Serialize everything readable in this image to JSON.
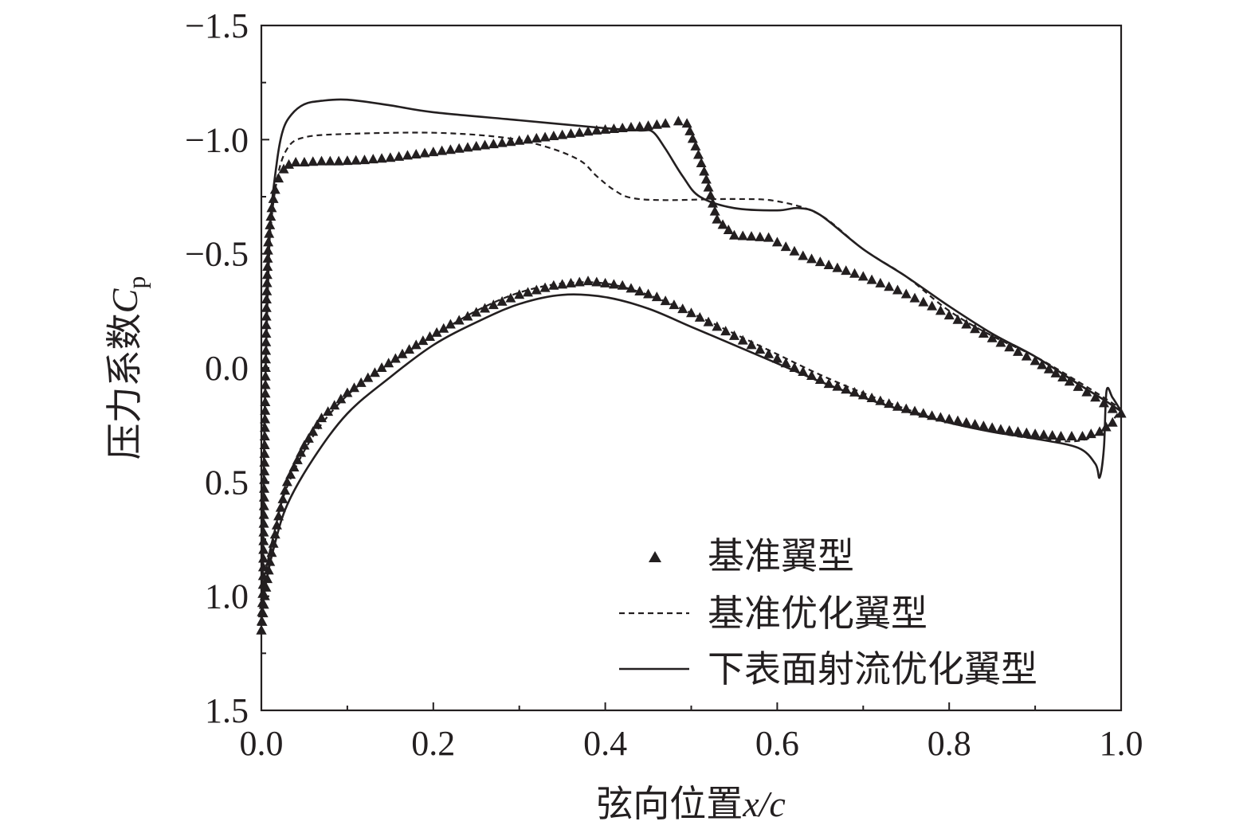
{
  "chart_data": {
    "type": "line",
    "xlabel": "弦向位置",
    "xlabel_var": "x/c",
    "ylabel": "压力系数",
    "ylabel_var": "C",
    "ylabel_sub": "p",
    "xlim": [
      0.0,
      1.0
    ],
    "ylim": [
      1.5,
      -1.5
    ],
    "y_inverted": true,
    "x_ticks": [
      "0.0",
      "0.2",
      "0.4",
      "0.6",
      "0.8",
      "1.0"
    ],
    "y_ticks": [
      "−1.5",
      "−1.0",
      "−0.5",
      "0.0",
      "0.5",
      "1.0",
      "1.5"
    ],
    "x_tick_values": [
      0.0,
      0.2,
      0.4,
      0.6,
      0.8,
      1.0
    ],
    "y_tick_values": [
      -1.5,
      -1.0,
      -0.5,
      0.0,
      0.5,
      1.0,
      1.5
    ],
    "grid": false,
    "legend_position": "bottom-right",
    "series": [
      {
        "name": "基准翼型",
        "style": "triangle-markers",
        "upper": [
          [
            0.0,
            1.15
          ],
          [
            0.002,
            0.95
          ],
          [
            0.004,
            0.3
          ],
          [
            0.006,
            -0.3
          ],
          [
            0.008,
            -0.55
          ],
          [
            0.012,
            -0.7
          ],
          [
            0.016,
            -0.78
          ],
          [
            0.02,
            -0.83
          ],
          [
            0.026,
            -0.87
          ],
          [
            0.032,
            -0.89
          ],
          [
            0.04,
            -0.9
          ],
          [
            0.05,
            -0.9
          ],
          [
            0.07,
            -0.905
          ],
          [
            0.09,
            -0.905
          ],
          [
            0.12,
            -0.91
          ],
          [
            0.15,
            -0.92
          ],
          [
            0.18,
            -0.935
          ],
          [
            0.21,
            -0.95
          ],
          [
            0.24,
            -0.965
          ],
          [
            0.27,
            -0.98
          ],
          [
            0.3,
            -0.995
          ],
          [
            0.33,
            -1.01
          ],
          [
            0.36,
            -1.025
          ],
          [
            0.39,
            -1.04
          ],
          [
            0.42,
            -1.05
          ],
          [
            0.45,
            -1.06
          ],
          [
            0.47,
            -1.07
          ],
          [
            0.485,
            -1.08
          ],
          [
            0.495,
            -1.07
          ],
          [
            0.505,
            -0.97
          ],
          [
            0.515,
            -0.86
          ],
          [
            0.53,
            -0.65
          ],
          [
            0.55,
            -0.58
          ],
          [
            0.57,
            -0.575
          ],
          [
            0.59,
            -0.57
          ],
          [
            0.61,
            -0.53
          ],
          [
            0.63,
            -0.49
          ],
          [
            0.66,
            -0.45
          ],
          [
            0.7,
            -0.4
          ],
          [
            0.74,
            -0.34
          ],
          [
            0.78,
            -0.27
          ],
          [
            0.82,
            -0.19
          ],
          [
            0.86,
            -0.11
          ],
          [
            0.9,
            -0.03
          ],
          [
            0.94,
            0.06
          ],
          [
            0.97,
            0.13
          ],
          [
            0.99,
            0.18
          ],
          [
            1.0,
            0.2
          ]
        ],
        "lower": [
          [
            0.0,
            1.15
          ],
          [
            0.004,
            1.0
          ],
          [
            0.01,
            0.85
          ],
          [
            0.02,
            0.65
          ],
          [
            0.03,
            0.5
          ],
          [
            0.05,
            0.34
          ],
          [
            0.07,
            0.22
          ],
          [
            0.1,
            0.11
          ],
          [
            0.14,
            0.0
          ],
          [
            0.18,
            -0.1
          ],
          [
            0.22,
            -0.19
          ],
          [
            0.26,
            -0.26
          ],
          [
            0.3,
            -0.32
          ],
          [
            0.34,
            -0.36
          ],
          [
            0.38,
            -0.38
          ],
          [
            0.42,
            -0.36
          ],
          [
            0.46,
            -0.31
          ],
          [
            0.5,
            -0.24
          ],
          [
            0.54,
            -0.16
          ],
          [
            0.58,
            -0.08
          ],
          [
            0.62,
            0.0
          ],
          [
            0.66,
            0.07
          ],
          [
            0.7,
            0.12
          ],
          [
            0.74,
            0.17
          ],
          [
            0.78,
            0.21
          ],
          [
            0.82,
            0.24
          ],
          [
            0.86,
            0.27
          ],
          [
            0.9,
            0.29
          ],
          [
            0.93,
            0.3
          ],
          [
            0.955,
            0.3
          ],
          [
            0.975,
            0.28
          ],
          [
            0.99,
            0.24
          ],
          [
            1.0,
            0.2
          ]
        ]
      },
      {
        "name": "基准优化翼型",
        "style": "dashed",
        "upper": [
          [
            0.0,
            1.1
          ],
          [
            0.002,
            0.6
          ],
          [
            0.005,
            0.0
          ],
          [
            0.01,
            -0.55
          ],
          [
            0.018,
            -0.82
          ],
          [
            0.03,
            -0.96
          ],
          [
            0.05,
            -1.01
          ],
          [
            0.1,
            -1.025
          ],
          [
            0.2,
            -1.03
          ],
          [
            0.28,
            -1.01
          ],
          [
            0.33,
            -0.97
          ],
          [
            0.37,
            -0.91
          ],
          [
            0.39,
            -0.84
          ],
          [
            0.41,
            -0.78
          ],
          [
            0.43,
            -0.745
          ],
          [
            0.47,
            -0.735
          ],
          [
            0.55,
            -0.74
          ],
          [
            0.6,
            -0.73
          ],
          [
            0.65,
            -0.67
          ],
          [
            0.7,
            -0.52
          ],
          [
            0.75,
            -0.4
          ],
          [
            0.8,
            -0.25
          ],
          [
            0.85,
            -0.14
          ],
          [
            0.9,
            -0.05
          ],
          [
            0.95,
            0.06
          ],
          [
            0.98,
            0.13
          ],
          [
            1.0,
            0.18
          ]
        ],
        "lower": [
          [
            0.0,
            1.1
          ],
          [
            0.005,
            0.9
          ],
          [
            0.015,
            0.72
          ],
          [
            0.03,
            0.52
          ],
          [
            0.06,
            0.3
          ],
          [
            0.1,
            0.12
          ],
          [
            0.15,
            -0.02
          ],
          [
            0.2,
            -0.14
          ],
          [
            0.25,
            -0.25
          ],
          [
            0.3,
            -0.33
          ],
          [
            0.35,
            -0.37
          ],
          [
            0.4,
            -0.37
          ],
          [
            0.45,
            -0.32
          ],
          [
            0.5,
            -0.24
          ],
          [
            0.55,
            -0.15
          ],
          [
            0.6,
            -0.06
          ],
          [
            0.65,
            0.03
          ],
          [
            0.7,
            0.11
          ],
          [
            0.75,
            0.18
          ],
          [
            0.8,
            0.24
          ],
          [
            0.85,
            0.28
          ],
          [
            0.9,
            0.31
          ],
          [
            0.95,
            0.32
          ],
          [
            0.98,
            0.27
          ],
          [
            1.0,
            0.18
          ]
        ]
      },
      {
        "name": "下表面射流优化翼型",
        "style": "solid",
        "upper": [
          [
            0.0,
            1.1
          ],
          [
            0.002,
            0.6
          ],
          [
            0.005,
            0.0
          ],
          [
            0.01,
            -0.6
          ],
          [
            0.018,
            -0.9
          ],
          [
            0.025,
            -1.04
          ],
          [
            0.035,
            -1.11
          ],
          [
            0.05,
            -1.155
          ],
          [
            0.07,
            -1.17
          ],
          [
            0.1,
            -1.175
          ],
          [
            0.15,
            -1.15
          ],
          [
            0.2,
            -1.12
          ],
          [
            0.3,
            -1.085
          ],
          [
            0.4,
            -1.05
          ],
          [
            0.44,
            -1.04
          ],
          [
            0.455,
            -1.035
          ],
          [
            0.47,
            -0.96
          ],
          [
            0.49,
            -0.84
          ],
          [
            0.51,
            -0.75
          ],
          [
            0.55,
            -0.7
          ],
          [
            0.6,
            -0.69
          ],
          [
            0.625,
            -0.7
          ],
          [
            0.65,
            -0.67
          ],
          [
            0.7,
            -0.52
          ],
          [
            0.75,
            -0.4
          ],
          [
            0.8,
            -0.27
          ],
          [
            0.85,
            -0.15
          ],
          [
            0.9,
            -0.05
          ],
          [
            0.95,
            0.07
          ],
          [
            0.98,
            0.14
          ],
          [
            1.0,
            0.19
          ]
        ],
        "lower": [
          [
            0.0,
            1.1
          ],
          [
            0.005,
            0.95
          ],
          [
            0.015,
            0.78
          ],
          [
            0.03,
            0.6
          ],
          [
            0.06,
            0.4
          ],
          [
            0.1,
            0.2
          ],
          [
            0.15,
            0.04
          ],
          [
            0.2,
            -0.1
          ],
          [
            0.25,
            -0.2
          ],
          [
            0.3,
            -0.28
          ],
          [
            0.35,
            -0.32
          ],
          [
            0.4,
            -0.31
          ],
          [
            0.45,
            -0.26
          ],
          [
            0.5,
            -0.18
          ],
          [
            0.55,
            -0.1
          ],
          [
            0.6,
            -0.02
          ],
          [
            0.65,
            0.06
          ],
          [
            0.7,
            0.13
          ],
          [
            0.75,
            0.19
          ],
          [
            0.8,
            0.24
          ],
          [
            0.85,
            0.28
          ],
          [
            0.9,
            0.31
          ],
          [
            0.95,
            0.35
          ],
          [
            0.97,
            0.42
          ],
          [
            0.975,
            0.48
          ],
          [
            0.98,
            0.35
          ],
          [
            0.983,
            0.1
          ],
          [
            0.99,
            0.13
          ],
          [
            1.0,
            0.19
          ]
        ]
      }
    ]
  }
}
